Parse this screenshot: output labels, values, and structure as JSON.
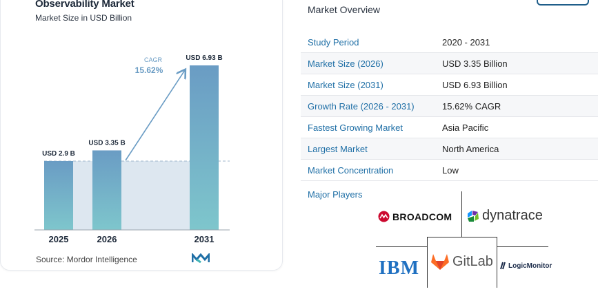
{
  "chart_data": {
    "type": "bar",
    "title": "Observability Market",
    "subtitle": "Market Size in USD Billion",
    "categories": [
      "2025",
      "2026",
      "2031"
    ],
    "values": [
      2.9,
      3.35,
      6.93
    ],
    "data_labels": [
      "USD 2.9 B",
      "USD 3.35 B",
      "USD 6.93 B"
    ],
    "cagr_label": "CAGR",
    "cagr_value": "15.62%",
    "ylim": [
      0,
      6.93
    ],
    "colors": {
      "bar_top": "#6a9cc4",
      "bar_bottom": "#7ec6cc",
      "area": "#dde7f0",
      "arrow": "#6a9cc4",
      "cagr_text": "#6a9cc4"
    },
    "source": "Source: Mordor Intelligence"
  },
  "overview": {
    "title": "Market Overview",
    "rows": [
      {
        "key": "Study Period",
        "value": "2020 - 2031"
      },
      {
        "key": "Market Size (2026)",
        "value": "USD 3.35 Billion"
      },
      {
        "key": "Market Size (2031)",
        "value": "USD 6.93 Billion"
      },
      {
        "key": "Growth Rate (2026 - 2031)",
        "value": "15.62% CAGR"
      },
      {
        "key": "Fastest Growing Market",
        "value": "Asia Pacific"
      },
      {
        "key": "Largest Market",
        "value": "North America"
      },
      {
        "key": "Market Concentration",
        "value": "Low"
      }
    ]
  },
  "players": {
    "label": "Major Players",
    "logos": {
      "broadcom": "BROADCOM",
      "dynatrace": "dynatrace",
      "ibm": "IBM",
      "gitlab": "GitLab",
      "logicmonitor": "LogicMonitor"
    }
  }
}
